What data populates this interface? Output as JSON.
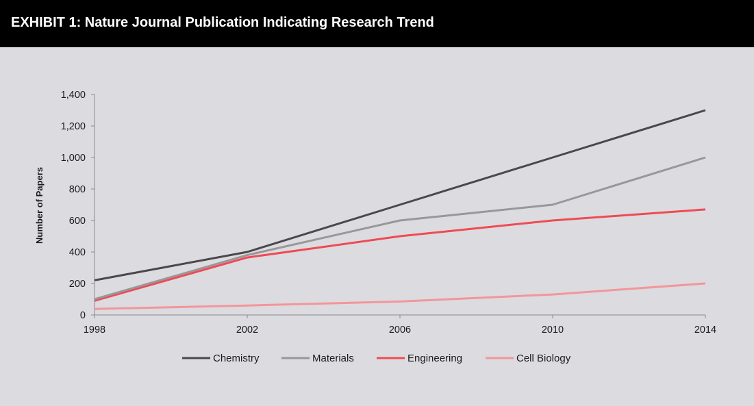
{
  "header": {
    "title": "EXHIBIT 1: Nature Journal Publication Indicating Research Trend"
  },
  "chart_data": {
    "type": "line",
    "title": "",
    "xlabel": "",
    "ylabel": "Number of Papers",
    "x": [
      1998,
      2002,
      2006,
      2010,
      2014
    ],
    "x_tick_labels": [
      "1998",
      "2002",
      "2006",
      "2010",
      "2014"
    ],
    "ylim": [
      0,
      1400
    ],
    "y_ticks": [
      0,
      200,
      400,
      600,
      800,
      1000,
      1200,
      1400
    ],
    "y_tick_labels": [
      "0",
      "200",
      "400",
      "600",
      "800",
      "1,000",
      "1,200",
      "1,400"
    ],
    "grid": false,
    "legend_position": "bottom",
    "series": [
      {
        "name": "Chemistry",
        "color": "#4a484d",
        "values": [
          220,
          400,
          700,
          1000,
          1300
        ]
      },
      {
        "name": "Materials",
        "color": "#98979a",
        "values": [
          100,
          380,
          600,
          700,
          1000
        ]
      },
      {
        "name": "Engineering",
        "color": "#ef4a55",
        "values": [
          90,
          365,
          500,
          600,
          670
        ]
      },
      {
        "name": "Cell Biology",
        "color": "#f2969b",
        "values": [
          38,
          60,
          85,
          130,
          200
        ]
      }
    ]
  }
}
